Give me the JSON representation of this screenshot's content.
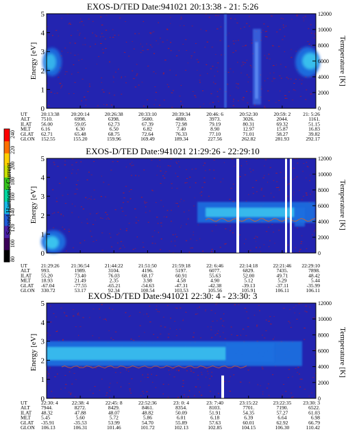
{
  "chart_data": [
    {
      "type": "heatmap",
      "title": "EXOS-D/TED   Date:941021  20:13:38 - 21: 5:26",
      "ylabel": "Energy [eV]",
      "ylabel_right": "Temperature [K]",
      "ylim": [
        0,
        5
      ],
      "yticks": [
        "0",
        "1",
        "2",
        "3",
        "4",
        "5"
      ],
      "ylim_right": [
        0,
        12000
      ],
      "yticks_right": [
        "0",
        "2000",
        "4000",
        "6000",
        "8000",
        "10000",
        "12000"
      ],
      "orbit_labels": [
        "UT",
        "ALT",
        "ILAT",
        "MLT",
        "GLAT",
        "GLON"
      ],
      "orbit_columns": [
        [
          "20:13:38",
          "7510.",
          "56.00",
          "6.16",
          "62.71",
          "152.55"
        ],
        [
          "20:20:14",
          "6998.",
          "59.05",
          "6.30",
          "65.48",
          "155.20"
        ],
        [
          "20:26:38",
          "6398.",
          "62.73",
          "6.50",
          "68.75",
          "159.96"
        ],
        [
          "20:33:10",
          "5680.",
          "67.39",
          "6.82",
          "72.64",
          "169.49"
        ],
        [
          "20:39:34",
          "4880.",
          "72.98",
          "7.40",
          "76.33",
          "189.34"
        ],
        [
          "20:46: 6",
          "3973.",
          "79.19",
          "8.90",
          "77.10",
          "227.56"
        ],
        [
          "20:52:30",
          "3026.",
          "80.31",
          "12.97",
          "71.01",
          "262.82"
        ],
        [
          "20:59: 2",
          "2044.",
          "69.32",
          "15.87",
          "58.27",
          "281.93"
        ],
        [
          "21: 5:26",
          "1161.",
          "51.15",
          "16.83",
          "39.82",
          "292.17"
        ]
      ]
    },
    {
      "type": "heatmap",
      "title": "EXOS-D/TED   Date:941021  21:29:26 - 22:29:10",
      "ylabel": "Energy [eV]",
      "ylabel_right": "Temperature [K]",
      "ylim": [
        0,
        5
      ],
      "yticks": [
        "0",
        "1",
        "2",
        "3",
        "4",
        "5"
      ],
      "ylim_right": [
        0,
        12000
      ],
      "yticks_right": [
        "0",
        "2000",
        "4000",
        "6000",
        "8000",
        "10000",
        "12000"
      ],
      "orbit_labels": [
        "UT",
        "ALT",
        "ILAT",
        "MLT",
        "GLAT",
        "GLON"
      ],
      "orbit_columns": [
        [
          "21:29:26",
          "993.",
          "55.20",
          "18.93",
          "-67.04",
          "330.72"
        ],
        [
          "21:36:54",
          "1989.",
          "73.40",
          "21.49",
          "-77.55",
          "53.17"
        ],
        [
          "21:44:22",
          "3104.",
          "76.03",
          "2.35",
          "-65.21",
          "92.34"
        ],
        [
          "21:51:50",
          "4196.",
          "68.17",
          "3.98",
          "-54.63",
          "100.54"
        ],
        [
          "21:59:18",
          "5197.",
          "60.91",
          "4.58",
          "-47.31",
          "103.53"
        ],
        [
          "22: 6:46",
          "6077.",
          "55.63",
          "4.90",
          "-42.38",
          "105.56"
        ],
        [
          "22:14:18",
          "6829.",
          "52.00",
          "5.12",
          "-39.13",
          "105.91"
        ],
        [
          "22:21:46",
          "7435.",
          "49.71",
          "5.29",
          "-37.11",
          "106.11"
        ],
        [
          "22:29:10",
          "7898.",
          "48.42",
          "5.44",
          "-35.99",
          "106.11"
        ]
      ]
    },
    {
      "type": "heatmap",
      "title": "EXOS-D/TED   Date:941021  22:30: 4 - 23:30: 3",
      "ylabel": "Energy [eV]",
      "ylabel_right": "Temperature [K]",
      "ylim": [
        0,
        5
      ],
      "yticks": [
        "0",
        "1",
        "2",
        "3",
        "4",
        "5"
      ],
      "ylim_right": [
        0,
        12000
      ],
      "yticks_right": [
        "0",
        "2000",
        "4000",
        "6000",
        "8000",
        "10000",
        "12000"
      ],
      "orbit_labels": [
        "UT",
        "ALT",
        "ILAT",
        "MLT",
        "GLAT",
        "GLON"
      ],
      "orbit_columns": [
        [
          "22:30: 4",
          "7944.",
          "48.32",
          "5.45",
          "-35.91",
          "106.13"
        ],
        [
          "22:38: 4",
          "8272.",
          "47.88",
          "5.60",
          "-35.53",
          "106.31"
        ],
        [
          "22:45: 8",
          "8429.",
          "48.07",
          "5.72",
          "53.99",
          "101.46"
        ],
        [
          "22:52:36",
          "8461.",
          "48.82",
          "5.86",
          "54.70",
          "101.72"
        ],
        [
          "23: 0: 4",
          "8354.",
          "50.09",
          "6.01",
          "55.89",
          "102.13"
        ],
        [
          "23: 7:40",
          "8103.",
          "51.91",
          "6.18",
          "57.63",
          "102.85"
        ],
        [
          "23:15:22",
          "7701.",
          "54.35",
          "6.39",
          "60.01",
          "104.15"
        ],
        [
          "23:22:35",
          "7190.",
          "57.27",
          "6.64",
          "62.92",
          "106.30"
        ],
        [
          "23:30: 3",
          "6522.",
          "61.03",
          "6.98",
          "66.79",
          "110.42"
        ]
      ]
    }
  ],
  "colorbar": {
    "label": "Second Harmonic Current",
    "ticks": [
      "80",
      "100",
      "120",
      "140",
      "160",
      "180",
      "200",
      "220",
      "240"
    ],
    "colors": [
      "#000000",
      "#3a0058",
      "#4a1fa8",
      "#1f5bd8",
      "#15b9e6",
      "#00d8a0",
      "#35c41a",
      "#c9e000",
      "#ffd000",
      "#ff7000",
      "#ff0000"
    ]
  },
  "colors": {
    "background": "#2324b0",
    "speckle": "#b21a2a",
    "band_outer": "#1f6fe0",
    "band_inner": "#3fd3f2",
    "gap": "#ffffff"
  }
}
